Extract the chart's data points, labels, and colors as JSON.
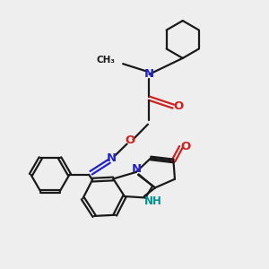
{
  "bg_color": "#eeeeee",
  "bond_color": "#1a1a1a",
  "n_color": "#2222cc",
  "o_color": "#cc2222",
  "nh_color": "#009090",
  "lw": 1.6,
  "lw2": 1.6,
  "fig_w": 3.0,
  "fig_h": 3.0,
  "dpi": 100,
  "xlim": [
    0,
    10
  ],
  "ylim": [
    0,
    10
  ]
}
